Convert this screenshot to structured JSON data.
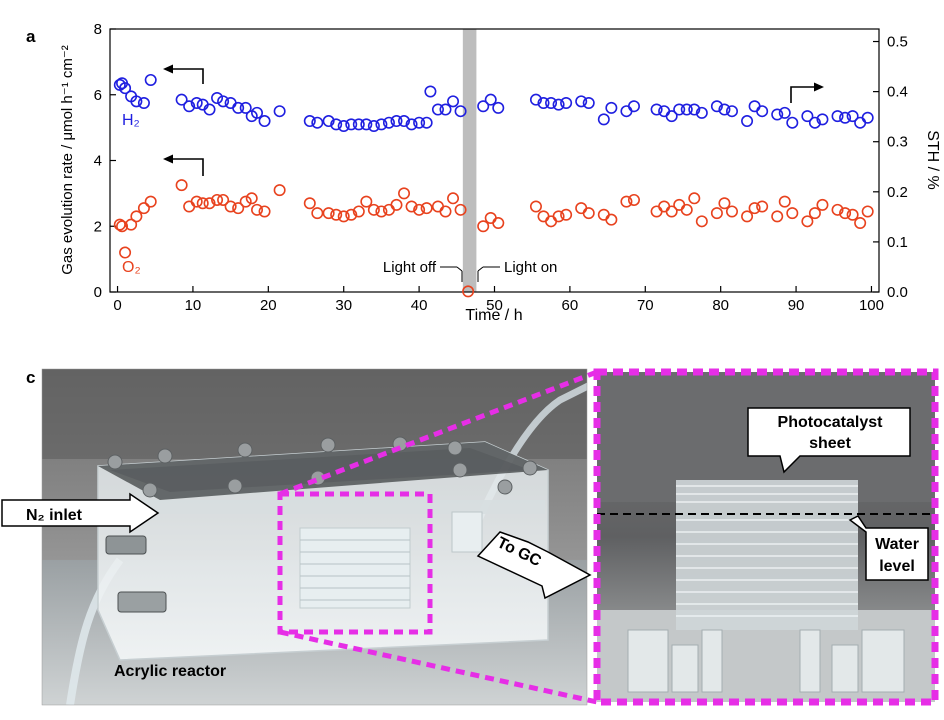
{
  "panels": {
    "a_label": "a",
    "c_label": "c"
  },
  "chart_data": {
    "type": "scatter",
    "title": "",
    "xlabel": "Time / h",
    "ylabel": "Gas evolution rate / μmol h⁻¹ cm⁻²",
    "y2label": "STH / %",
    "xlim": [
      -1,
      101
    ],
    "ylim": [
      0,
      8
    ],
    "y2lim": [
      0,
      0.525
    ],
    "xticks": [
      0,
      10,
      20,
      30,
      40,
      50,
      60,
      70,
      80,
      90,
      100
    ],
    "yticks": [
      0,
      2,
      4,
      6,
      8
    ],
    "y2ticks": [
      0.0,
      0.1,
      0.2,
      0.3,
      0.4,
      0.5
    ],
    "grid": false,
    "shaded_region": {
      "x": [
        45.8,
        47.6
      ],
      "label_off": "Light off",
      "label_on": "Light on"
    },
    "series": [
      {
        "name": "H₂",
        "color": "#1f1fe0",
        "x": [
          0.3,
          0.6,
          1,
          1.8,
          2.5,
          3.5,
          4.4,
          8.5,
          9.5,
          10.5,
          11.3,
          12.2,
          13.2,
          14,
          15,
          16,
          17,
          17.8,
          18.5,
          19.5,
          21.5,
          25.5,
          26.5,
          28,
          29,
          30,
          31,
          32,
          33,
          34,
          35,
          36,
          37,
          38,
          39,
          40,
          41,
          41.5,
          42.5,
          43.5,
          44.5,
          45.5,
          48.5,
          49.5,
          50.5,
          55.5,
          56.5,
          57.5,
          58.5,
          59.5,
          61.5,
          62.5,
          64.5,
          65.5,
          67.5,
          68.5,
          71.5,
          72.5,
          73.5,
          74.5,
          75.5,
          76.5,
          77.5,
          79.5,
          80.5,
          81.5,
          83.5,
          84.5,
          85.5,
          87.5,
          88.5,
          89.5,
          91.5,
          92.5,
          93.5,
          95.5,
          96.5,
          97.5,
          98.5,
          99.5
        ],
        "y": [
          6.3,
          6.35,
          6.2,
          5.95,
          5.8,
          5.75,
          6.45,
          5.85,
          5.65,
          5.75,
          5.7,
          5.55,
          5.9,
          5.8,
          5.75,
          5.6,
          5.6,
          5.35,
          5.45,
          5.2,
          5.5,
          5.2,
          5.15,
          5.2,
          5.1,
          5.05,
          5.1,
          5.1,
          5.1,
          5.05,
          5.1,
          5.15,
          5.2,
          5.2,
          5.1,
          5.15,
          5.15,
          6.1,
          5.55,
          5.55,
          5.8,
          5.5,
          5.65,
          5.85,
          5.6,
          5.85,
          5.75,
          5.75,
          5.7,
          5.75,
          5.8,
          5.75,
          5.25,
          5.6,
          5.5,
          5.65,
          5.55,
          5.5,
          5.35,
          5.55,
          5.55,
          5.55,
          5.45,
          5.65,
          5.55,
          5.5,
          5.2,
          5.65,
          5.5,
          5.4,
          5.45,
          5.15,
          5.35,
          5.15,
          5.25,
          5.35,
          5.3,
          5.35,
          5.15,
          5.3
        ]
      },
      {
        "name": "O₂",
        "color": "#e8421e",
        "x": [
          0.3,
          0.6,
          1,
          1.8,
          2.5,
          3.5,
          4.4,
          8.5,
          9.5,
          10.5,
          11.3,
          12.2,
          13.2,
          14,
          15,
          16,
          17,
          17.8,
          18.5,
          19.5,
          21.5,
          25.5,
          26.5,
          28,
          29,
          30,
          31,
          32,
          33,
          34,
          35,
          36,
          37,
          38,
          39,
          40,
          41,
          42.5,
          43.5,
          44.5,
          45.5,
          46.5,
          48.5,
          49.5,
          50.5,
          55.5,
          56.5,
          57.5,
          58.5,
          59.5,
          61.5,
          62.5,
          64.5,
          65.5,
          67.5,
          68.5,
          71.5,
          72.5,
          73.5,
          74.5,
          75.5,
          76.5,
          77.5,
          79.5,
          80.5,
          81.5,
          83.5,
          84.5,
          85.5,
          87.5,
          88.5,
          89.5,
          91.5,
          92.5,
          93.5,
          95.5,
          96.5,
          97.5,
          98.5,
          99.5
        ],
        "y": [
          2.05,
          2.0,
          1.2,
          2.05,
          2.3,
          2.55,
          2.75,
          3.25,
          2.6,
          2.75,
          2.7,
          2.7,
          2.8,
          2.8,
          2.6,
          2.55,
          2.75,
          2.85,
          2.5,
          2.45,
          3.1,
          2.7,
          2.4,
          2.4,
          2.35,
          2.3,
          2.35,
          2.45,
          2.75,
          2.5,
          2.45,
          2.5,
          2.65,
          3.0,
          2.6,
          2.5,
          2.55,
          2.6,
          2.45,
          2.85,
          2.5,
          0.02,
          2.0,
          2.25,
          2.1,
          2.6,
          2.3,
          2.15,
          2.3,
          2.35,
          2.55,
          2.4,
          2.35,
          2.2,
          2.75,
          2.8,
          2.45,
          2.6,
          2.45,
          2.65,
          2.5,
          2.85,
          2.15,
          2.4,
          2.7,
          2.45,
          2.3,
          2.55,
          2.6,
          2.3,
          2.75,
          2.4,
          2.15,
          2.4,
          2.65,
          2.5,
          2.4,
          2.35,
          2.1,
          2.45
        ]
      }
    ]
  },
  "photo": {
    "labels": {
      "n2_inlet": "N₂ inlet",
      "to_gc": "To GC",
      "acrylic_reactor": "Acrylic reactor",
      "photocatalyst_line1": "Photocatalyst",
      "photocatalyst_line2": "sheet",
      "water_line1": "Water",
      "water_line2": "level"
    },
    "highlight_color": "#e62ee6"
  }
}
